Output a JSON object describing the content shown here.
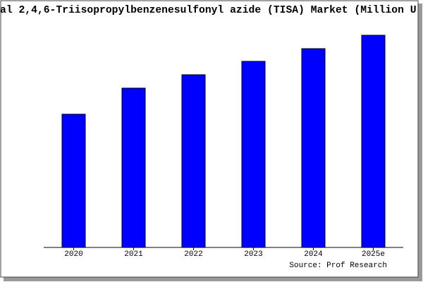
{
  "chart_data": {
    "type": "bar",
    "title": "al 2,4,6-Triisopropylbenzenesulfonyl azide (TISA) Market (Million U",
    "categories": [
      "2020",
      "2021",
      "2022",
      "2023",
      "2024",
      "2025e"
    ],
    "values": [
      189,
      226,
      245,
      264,
      282,
      301
    ],
    "color": "#0000ff",
    "ylim": [
      0,
      321
    ],
    "source": "Source: Prof Research"
  }
}
